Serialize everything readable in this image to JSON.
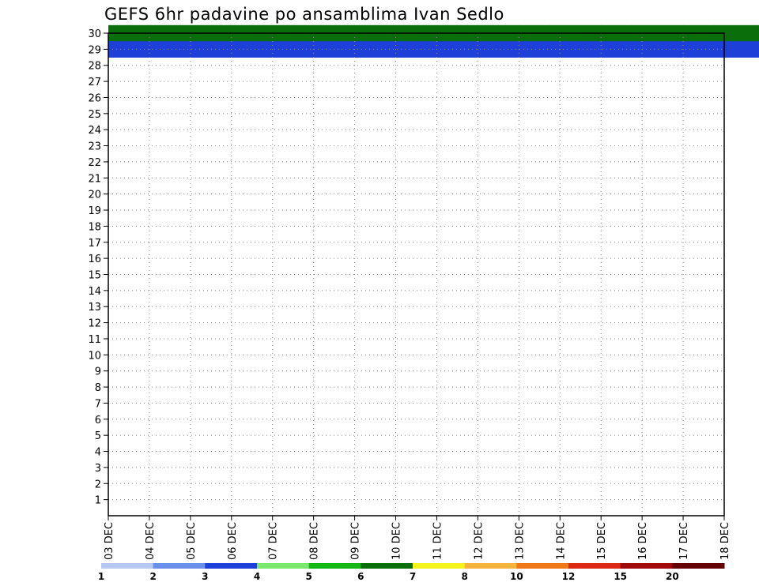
{
  "chart_data": {
    "type": "heatmap",
    "title": "GEFS 6hr padavine po ansamblima Ivan Sedlo",
    "xlabel": "",
    "ylabel": "",
    "x_tick_labels": [
      "03 DEC",
      "04 DEC",
      "05 DEC",
      "06 DEC",
      "07 DEC",
      "08 DEC",
      "09 DEC",
      "10 DEC",
      "11 DEC",
      "12 DEC",
      "13 DEC",
      "14 DEC",
      "15 DEC",
      "16 DEC",
      "17 DEC",
      "18 DEC"
    ],
    "x_range_days": [
      0,
      15
    ],
    "x_step_hours": 6,
    "y_tick_labels": [
      "1",
      "2",
      "3",
      "4",
      "5",
      "6",
      "7",
      "8",
      "9",
      "10",
      "11",
      "12",
      "13",
      "14",
      "15",
      "16",
      "17",
      "18",
      "19",
      "20",
      "21",
      "22",
      "23",
      "24",
      "25",
      "26",
      "27",
      "28",
      "29",
      "30"
    ],
    "y_range": [
      0,
      30
    ],
    "grid": true,
    "colorbar": {
      "thresholds": [
        1,
        2,
        3,
        4,
        5,
        6,
        7,
        8,
        10,
        12,
        15,
        20
      ],
      "tick_labels": [
        "1",
        "2",
        "3",
        "4",
        "5",
        "6",
        "7",
        "8",
        "10",
        "12",
        "15",
        "20"
      ],
      "colors": [
        "#b4c8f0",
        "#6a90ea",
        "#1e3fd8",
        "#7ae86a",
        "#14b814",
        "#0a6e0a",
        "#f5f51e",
        "#f5b43c",
        "#f07814",
        "#dc2814",
        "#a00a0a",
        "#640000"
      ]
    },
    "cells": [
      [
        0,
        30,
        5
      ],
      [
        0.25,
        30,
        5
      ],
      [
        0.5,
        30,
        5
      ],
      [
        0.75,
        30,
        5
      ],
      [
        1,
        30,
        5
      ],
      [
        1.25,
        30,
        5
      ],
      [
        1.5,
        30,
        5
      ],
      [
        1.75,
        30,
        5
      ],
      [
        2,
        30,
        5
      ],
      [
        2.25,
        30,
        5
      ],
      [
        2.5,
        30,
        5
      ],
      [
        2.75,
        30,
        5
      ],
      [
        3,
        30,
        5
      ],
      [
        3.25,
        30,
        5
      ],
      [
        3.5,
        30,
        5
      ],
      [
        3.75,
        30,
        5
      ],
      [
        4,
        30,
        5
      ],
      [
        4.25,
        30,
        5
      ],
      [
        4.5,
        30,
        5
      ],
      [
        4.75,
        30,
        5
      ],
      [
        5,
        30,
        5
      ],
      [
        5.25,
        30,
        5
      ],
      [
        5.5,
        30,
        5
      ],
      [
        5.75,
        30,
        5
      ],
      [
        6,
        30,
        5
      ],
      [
        6.25,
        30,
        5
      ],
      [
        6.5,
        30,
        5
      ],
      [
        6.75,
        30,
        5
      ],
      [
        7,
        30,
        5
      ],
      [
        7.25,
        30,
        5
      ],
      [
        7.5,
        30,
        5
      ],
      [
        7.75,
        30,
        5
      ],
      [
        8,
        30,
        5
      ],
      [
        8.25,
        30,
        5
      ],
      [
        8.5,
        30,
        5
      ],
      [
        8.75,
        30,
        5
      ],
      [
        9,
        30,
        5
      ],
      [
        9.25,
        30,
        5
      ],
      [
        9.5,
        30,
        5
      ],
      [
        9.75,
        30,
        5
      ],
      [
        10,
        30,
        5
      ],
      [
        10.25,
        30,
        5
      ],
      [
        10.5,
        30,
        5
      ],
      [
        10.75,
        30,
        5
      ],
      [
        11,
        30,
        5
      ],
      [
        11.25,
        30,
        5
      ],
      [
        11.5,
        30,
        5
      ],
      [
        11.75,
        30,
        5
      ],
      [
        12,
        30,
        5
      ],
      [
        12.25,
        30,
        5
      ],
      [
        12.5,
        30,
        5
      ],
      [
        12.75,
        30,
        5
      ],
      [
        13,
        30,
        5
      ],
      [
        13.25,
        30,
        5
      ],
      [
        13.5,
        30,
        5
      ],
      [
        13.75,
        30,
        5
      ],
      [
        14,
        30,
        5
      ],
      [
        14.25,
        30,
        5
      ],
      [
        14.5,
        30,
        5
      ],
      [
        14.75,
        30,
        5
      ],
      [
        15,
        30,
        5
      ],
      [
        15.25,
        30,
        5
      ],
      [
        15.5,
        30,
        5
      ],
      [
        15.75,
        30,
        5
      ],
      [
        0,
        29,
        2
      ],
      [
        0.25,
        29,
        2
      ],
      [
        0.5,
        29,
        2
      ],
      [
        0.75,
        29,
        2
      ],
      [
        1,
        29,
        2
      ],
      [
        1.25,
        29,
        2
      ],
      [
        1.5,
        29,
        2
      ],
      [
        1.75,
        29,
        2
      ],
      [
        2,
        29,
        2
      ],
      [
        2.25,
        29,
        2
      ],
      [
        2.5,
        29,
        2
      ],
      [
        2.75,
        29,
        2
      ],
      [
        3,
        29,
        2
      ],
      [
        3.25,
        29,
        2
      ],
      [
        3.5,
        29,
        2
      ],
      [
        3.75,
        29,
        2
      ],
      [
        4,
        29,
        2
      ],
      [
        4.25,
        29,
        2
      ],
      [
        4.5,
        29,
        2
      ],
      [
        4.75,
        29,
        2
      ],
      [
        5,
        29,
        2
      ],
      [
        5.25,
        29,
        2
      ],
      [
        5.5,
        29,
        2
      ],
      [
        5.75,
        29,
        2
      ],
      [
        6,
        29,
        2
      ],
      [
        6.25,
        29,
        2
      ],
      [
        6.5,
        29,
        2
      ],
      [
        6.75,
        29,
        2
      ],
      [
        7,
        29,
        2
      ],
      [
        7.25,
        29,
        2
      ],
      [
        7.5,
        29,
        2
      ],
      [
        7.75,
        29,
        2
      ],
      [
        8,
        29,
        2
      ],
      [
        8.25,
        29,
        2
      ],
      [
        8.5,
        29,
        2
      ],
      [
        8.75,
        29,
        2
      ],
      [
        9,
        29,
        2
      ],
      [
        9.25,
        29,
        2
      ],
      [
        9.5,
        29,
        2
      ],
      [
        9.75,
        29,
        2
      ],
      [
        10,
        29,
        2
      ],
      [
        10.25,
        29,
        2
      ],
      [
        10.5,
        29,
        2
      ],
      [
        10.75,
        29,
        2
      ],
      [
        11,
        29,
        2
      ],
      [
        11.25,
        29,
        2
      ],
      [
        11.5,
        29,
        2
      ],
      [
        11.75,
        29,
        2
      ],
      [
        12,
        29,
        2
      ],
      [
        12.25,
        29,
        2
      ],
      [
        12.5,
        29,
        2
      ],
      [
        12.75,
        29,
        2
      ],
      [
        13,
        29,
        2
      ],
      [
        13.25,
        29,
        2
      ],
      [
        13.5,
        29,
        2
      ],
      [
        13.75,
        29,
        2
      ],
      [
        14,
        29,
        2
      ],
      [
        14.25,
        29,
        2
      ],
      [
        14.5,
        29,
        2
      ],
      [
        14.75,
        29,
        2
      ],
      [
        15,
        29,
        2
      ],
      [
        15.25,
        29,
        2
      ],
      [
        15.5,
        29,
        2
      ],
      [
        15.75,
        29,
        2
      ]
    ]
  }
}
